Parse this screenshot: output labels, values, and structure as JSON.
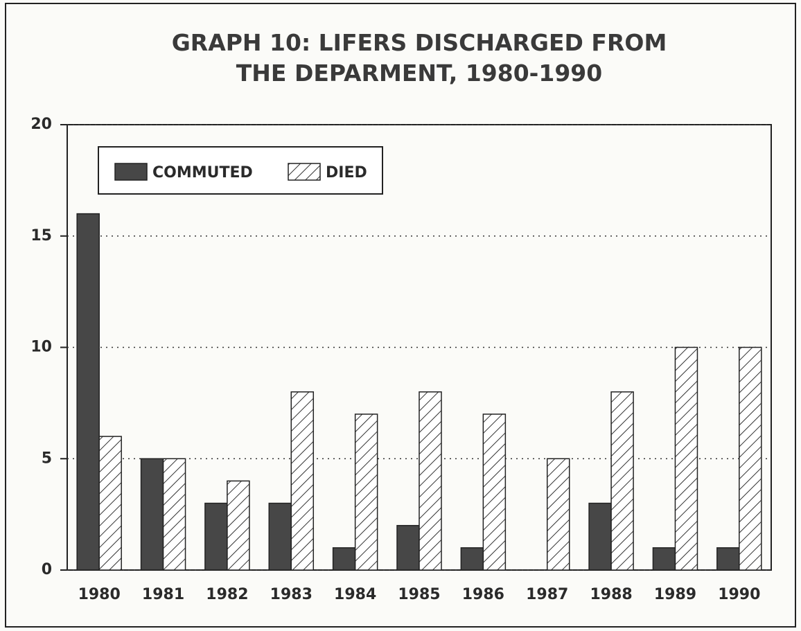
{
  "chart_data": {
    "type": "bar",
    "title": "GRAPH 10: LIFERS DISCHARGED FROM THE DEPARMENT, 1980-1990",
    "categories": [
      "1980",
      "1981",
      "1982",
      "1983",
      "1984",
      "1985",
      "1986",
      "1987",
      "1988",
      "1989",
      "1990"
    ],
    "series": [
      {
        "name": "COMMUTED",
        "color": "#474747",
        "values": [
          16,
          5,
          3,
          3,
          1,
          2,
          1,
          0,
          3,
          1,
          1
        ]
      },
      {
        "name": "DIED",
        "color": "#333333",
        "hatch": true,
        "values": [
          6,
          5,
          4,
          8,
          7,
          8,
          7,
          5,
          8,
          10,
          10
        ]
      }
    ],
    "ylim": [
      0,
      20
    ],
    "yticks": [
      0,
      5,
      10,
      15,
      20
    ],
    "grid": true,
    "legend": "upper left"
  }
}
